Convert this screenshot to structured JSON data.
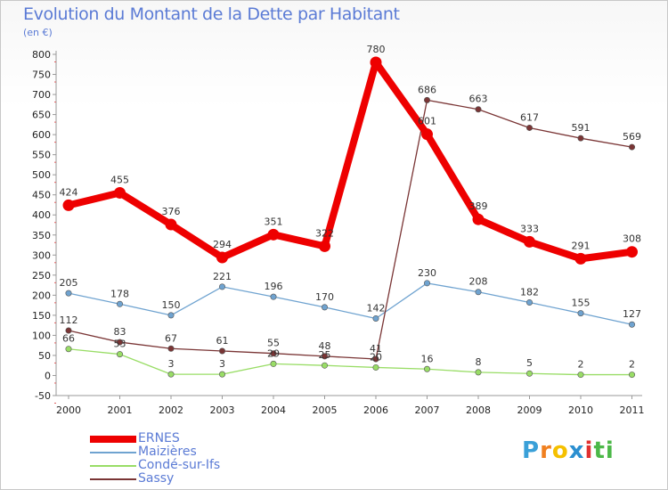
{
  "title": "Evolution du Montant de la Dette par Habitant",
  "subtitle": "(en €)",
  "logo": "Proxiti",
  "chart_data": {
    "type": "line",
    "title": "Evolution du Montant de la Dette par Habitant",
    "subtitle": "(en €)",
    "x": [
      "2000",
      "2001",
      "2002",
      "2003",
      "2004",
      "2005",
      "2006",
      "2007",
      "2008",
      "2009",
      "2010",
      "2011"
    ],
    "ylim": [
      -50,
      800
    ],
    "yticks": [
      -50,
      0,
      50,
      100,
      150,
      200,
      250,
      300,
      350,
      400,
      450,
      500,
      550,
      600,
      650,
      700,
      750,
      800
    ],
    "grid": false,
    "legend_position": "bottom-left",
    "series": [
      {
        "name": "ERNES",
        "color": "#ee0000",
        "values": [
          424,
          455,
          376,
          294,
          351,
          322,
          780,
          601,
          389,
          333,
          291,
          308
        ],
        "labels": [
          "424",
          "455",
          "376",
          "294",
          "351",
          "322",
          "780",
          "601",
          "389",
          "333",
          "291",
          "308"
        ]
      },
      {
        "name": "Maizières",
        "color": "#6fa3d0",
        "values": [
          205,
          178,
          150,
          221,
          196,
          170,
          142,
          230,
          208,
          182,
          155,
          127
        ],
        "labels": [
          "205",
          "178",
          "150",
          "221",
          "196",
          "170",
          "142",
          "230",
          "208",
          "182",
          "155",
          "127"
        ]
      },
      {
        "name": "Condé-sur-Ifs",
        "color": "#99dd66",
        "values": [
          66,
          53,
          3,
          3,
          29,
          25,
          20,
          16,
          8,
          5,
          2,
          2
        ],
        "labels": [
          "66",
          "53",
          "3",
          "3",
          "29",
          "25",
          "20",
          "16",
          "8",
          "5",
          "2",
          "2"
        ]
      },
      {
        "name": "Sassy",
        "color": "#7a3535",
        "values": [
          112,
          83,
          67,
          61,
          55,
          48,
          41,
          686,
          663,
          617,
          591,
          569
        ],
        "labels": [
          "112",
          "83",
          "67",
          "61",
          "55",
          "48",
          "41",
          "686",
          "663",
          "617",
          "591",
          "569"
        ]
      }
    ]
  }
}
